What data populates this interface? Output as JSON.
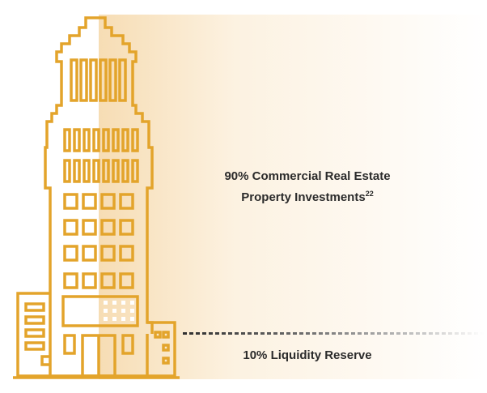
{
  "colors": {
    "accent": "#E3A42B",
    "text": "#2B2B2B",
    "gradient": "#F6DBB0"
  },
  "labels": {
    "main_line1": "90% Commercial Real Estate",
    "main_line2": "Property Investments",
    "main_footnote": "22",
    "reserve": "10% Liquidity Reserve"
  },
  "icons": {
    "building": "skyscraper-outline-icon"
  }
}
